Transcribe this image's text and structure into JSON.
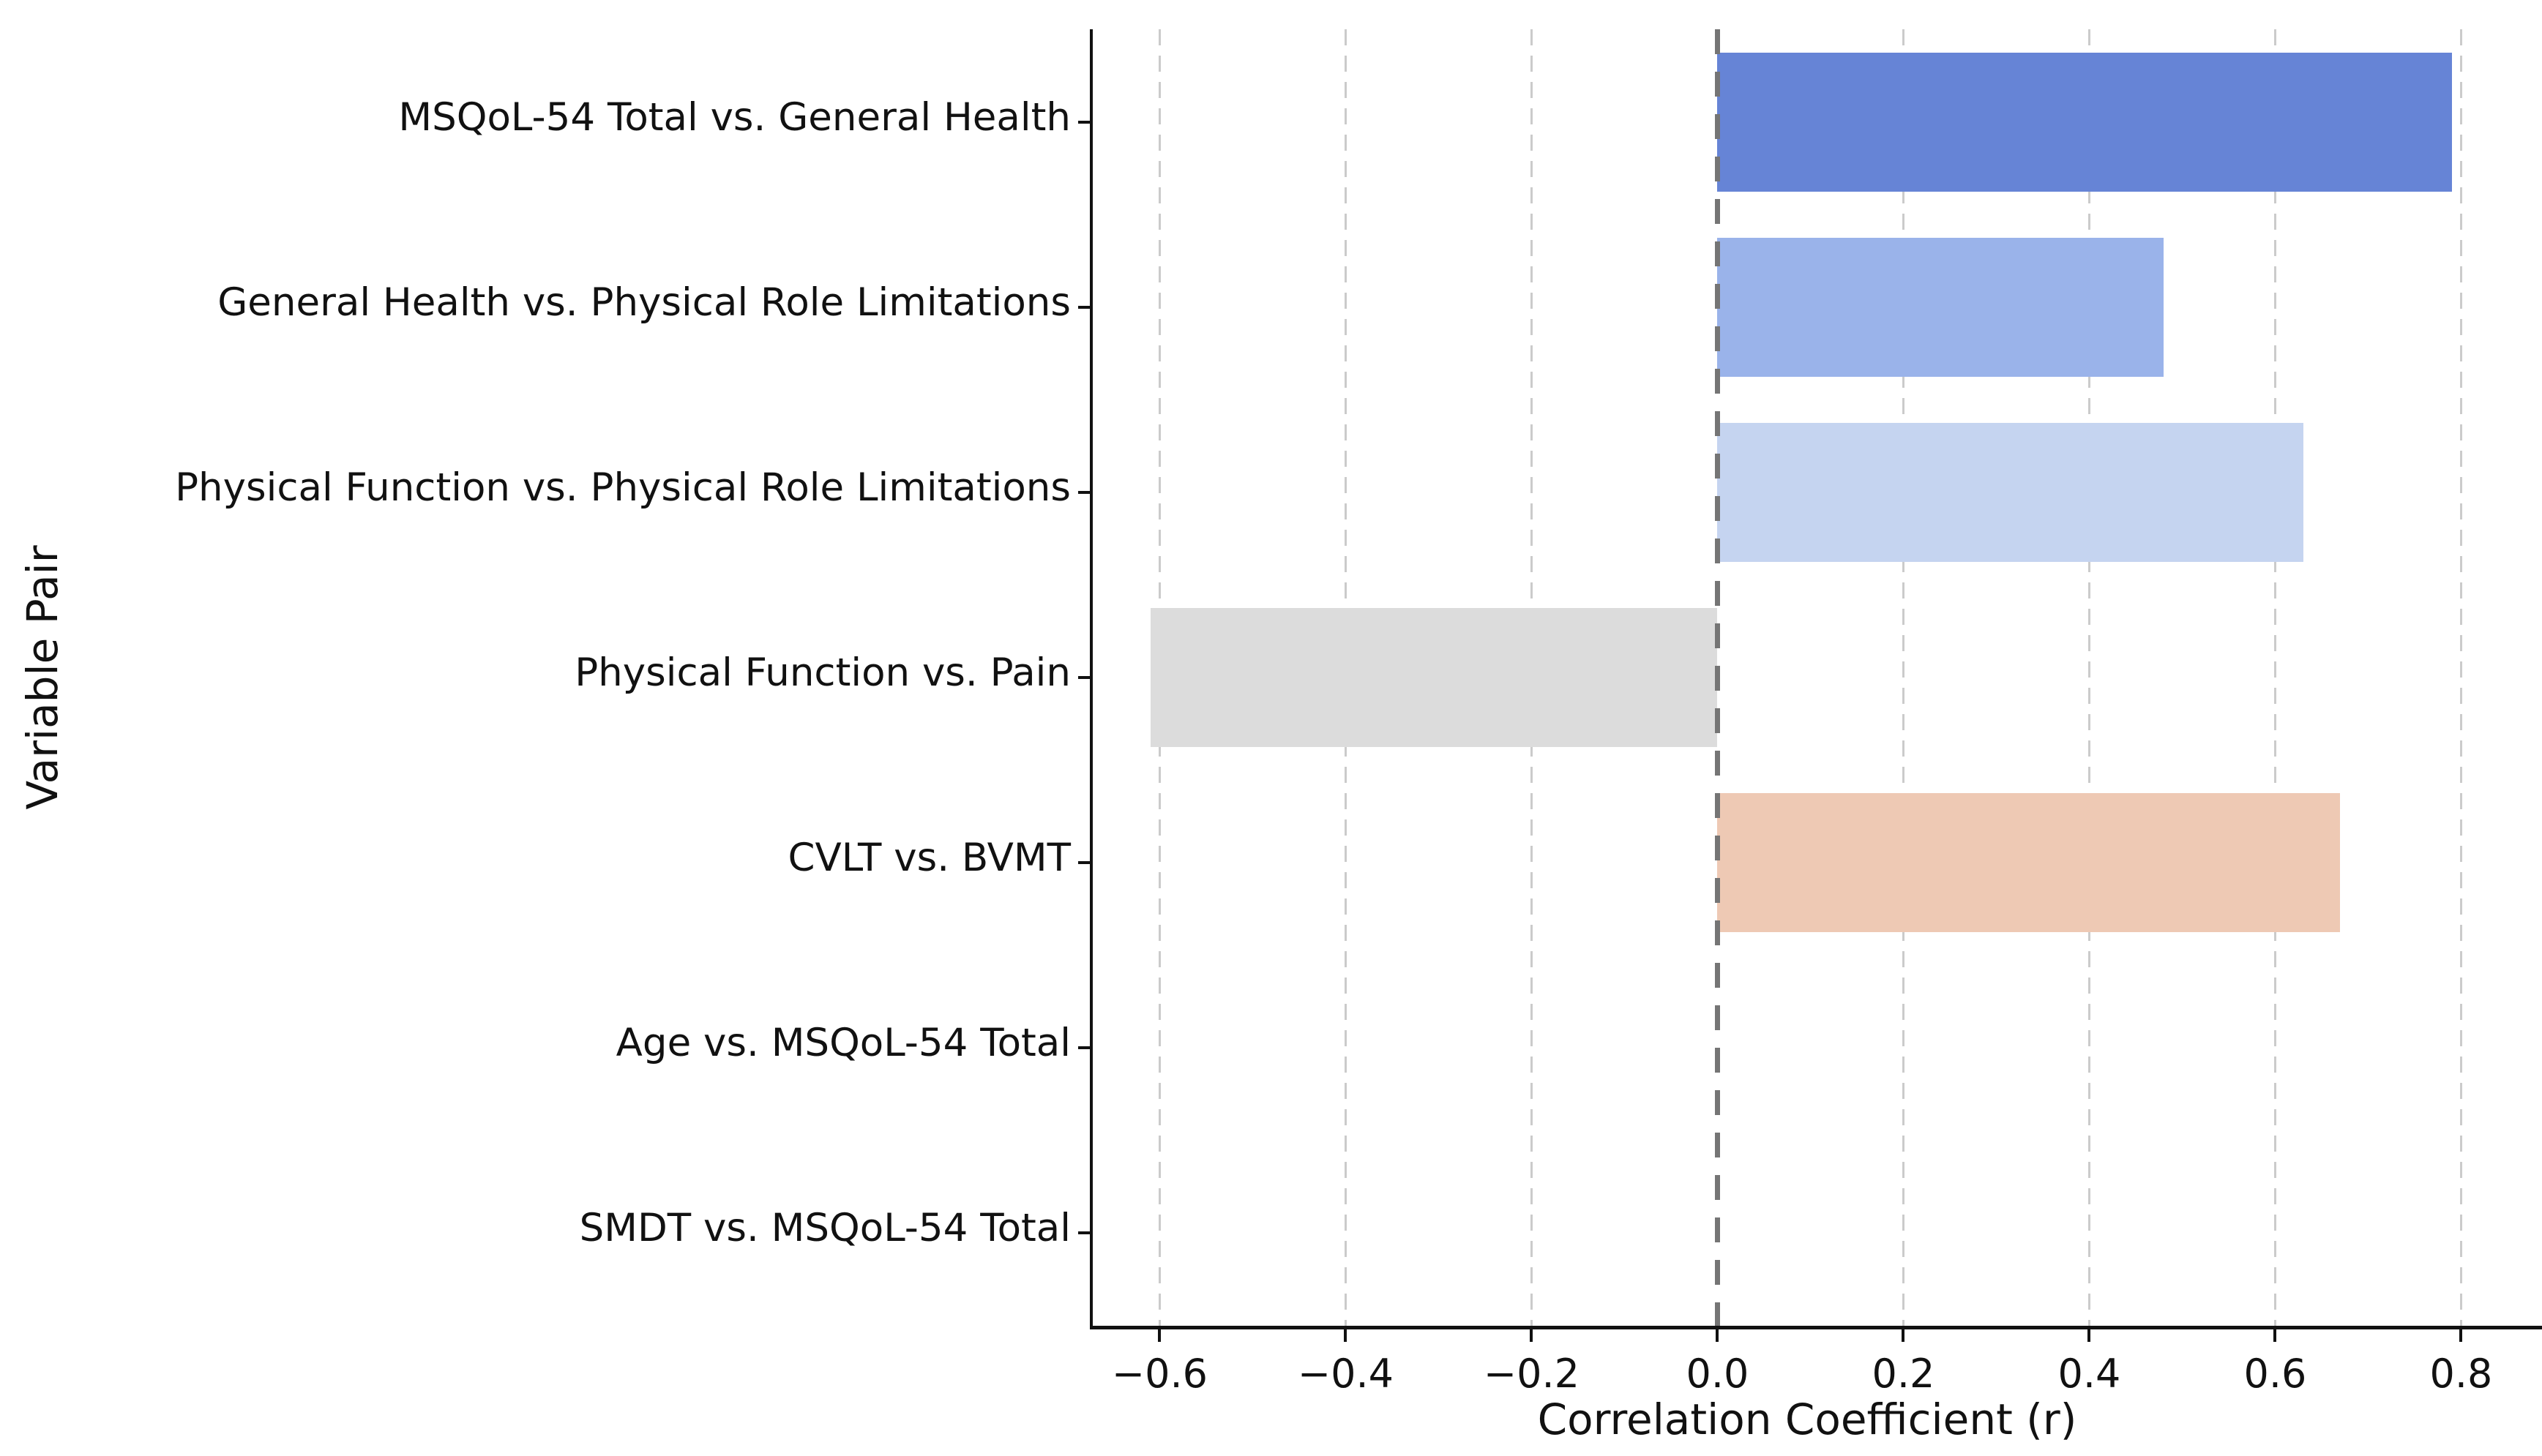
{
  "figure": {
    "background": "#ffffff",
    "text_color": "#111111"
  },
  "chart_data": {
    "type": "bar",
    "orientation": "horizontal",
    "title": "",
    "xlabel": "Correlation Coefficient (r)",
    "ylabel": "Variable Pair",
    "categories": [
      "MSQoL-54 Total vs. General Health",
      "General Health vs. Physical Role Limitations",
      "Physical Function vs. Physical Role Limitations",
      "Physical Function vs. Pain",
      "CVLT vs. BVMT",
      "Age vs. MSQoL-54 Total",
      "SMDT vs. MSQoL-54 Total"
    ],
    "values": [
      0.79,
      0.48,
      0.63,
      -0.61,
      0.67,
      0.0,
      0.0
    ],
    "bar_colors": [
      "#6684d6",
      "#9ab3ea",
      "#c5d4f0",
      "#dcdcdc",
      "#eec9b4",
      "#dddddd",
      "#dddddd"
    ],
    "xticks": [
      -0.6,
      -0.4,
      -0.2,
      0.0,
      0.2,
      0.4,
      0.6,
      0.8
    ],
    "xtick_labels": [
      "−0.6",
      "−0.4",
      "−0.2",
      "0.0",
      "0.2",
      "0.4",
      "0.6",
      "0.8"
    ],
    "xlim": [
      -0.672,
      0.865
    ],
    "grid": {
      "axis": "x",
      "style": "dashed",
      "color": "#cbcbcb"
    },
    "zero_line": {
      "x": 0.0,
      "style": "dashed",
      "color": "#757575"
    },
    "legend": null
  }
}
